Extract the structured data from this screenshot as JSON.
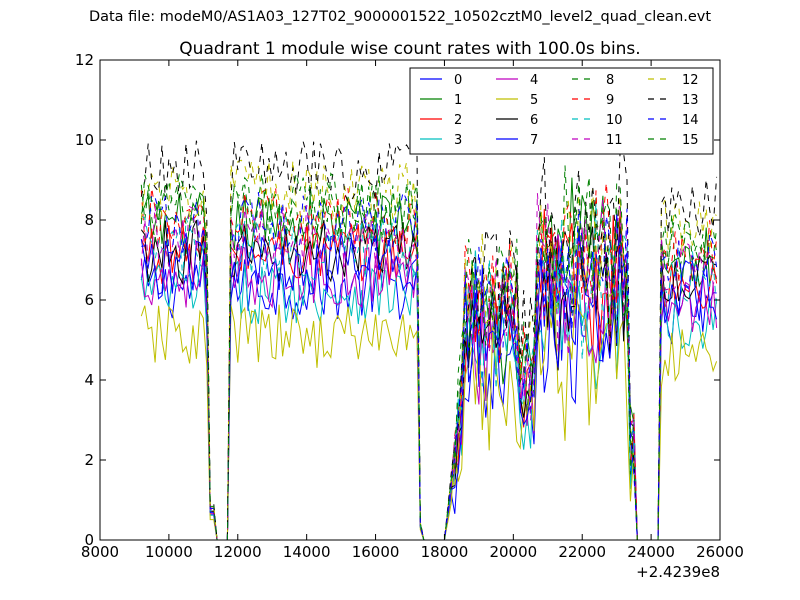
{
  "suptitle": "Data file: modeM0/AS1A03_127T02_9000001522_10502cztM0_level2_quad_clean.evt",
  "chart_data": {
    "type": "line",
    "title": "Quadrant 1 module wise count rates with 100.0s bins.",
    "xlabel": "",
    "ylabel": "",
    "x_offset_label": "+2.4239e8",
    "xlim": [
      8000,
      26000
    ],
    "ylim": [
      0,
      12
    ],
    "xticks": [
      8000,
      10000,
      12000,
      14000,
      16000,
      18000,
      20000,
      22000,
      24000,
      26000
    ],
    "yticks": [
      0,
      2,
      4,
      6,
      8,
      10,
      12
    ],
    "legend_position": "top-right",
    "legend_columns": 4,
    "segments": [
      {
        "x_start": 9200,
        "x_end": 11100,
        "note": "active"
      },
      {
        "x_start": 11200,
        "x_end": 11600,
        "note": "drop to zero"
      },
      {
        "x_start": 11700,
        "x_end": 17200,
        "note": "active"
      },
      {
        "x_start": 17300,
        "x_end": 18000,
        "note": "near zero"
      },
      {
        "x_start": 18000,
        "x_end": 23500,
        "note": "rising / variable"
      },
      {
        "x_start": 23600,
        "x_end": 24200,
        "note": "zero"
      },
      {
        "x_start": 24300,
        "x_end": 25900,
        "note": "active"
      }
    ],
    "series": [
      {
        "name": "0",
        "color": "#0000ff",
        "style": "solid",
        "level": 6.3
      },
      {
        "name": "1",
        "color": "#008000",
        "style": "solid",
        "level": 7.9
      },
      {
        "name": "2",
        "color": "#ff0000",
        "style": "solid",
        "level": 7.2
      },
      {
        "name": "3",
        "color": "#00bfbf",
        "style": "solid",
        "level": 6.2
      },
      {
        "name": "4",
        "color": "#bf00bf",
        "style": "solid",
        "level": 6.6
      },
      {
        "name": "5",
        "color": "#bfbf00",
        "style": "solid",
        "level": 5.1
      },
      {
        "name": "6",
        "color": "#000000",
        "style": "solid",
        "level": 7.2
      },
      {
        "name": "7",
        "color": "#0000ff",
        "style": "solid",
        "level": 6.9
      },
      {
        "name": "8",
        "color": "#008000",
        "style": "dashed",
        "level": 8.2
      },
      {
        "name": "9",
        "color": "#ff0000",
        "style": "dashed",
        "level": 8.0
      },
      {
        "name": "10",
        "color": "#00bfbf",
        "style": "dashed",
        "level": 7.3
      },
      {
        "name": "11",
        "color": "#bf00bf",
        "style": "dashed",
        "level": 7.6
      },
      {
        "name": "12",
        "color": "#bfbf00",
        "style": "dashed",
        "level": 8.7
      },
      {
        "name": "13",
        "color": "#000000",
        "style": "dashed",
        "level": 9.2
      },
      {
        "name": "14",
        "color": "#0000ff",
        "style": "dashed",
        "level": 7.9
      },
      {
        "name": "15",
        "color": "#008000",
        "style": "dashed",
        "level": 8.4
      }
    ]
  }
}
